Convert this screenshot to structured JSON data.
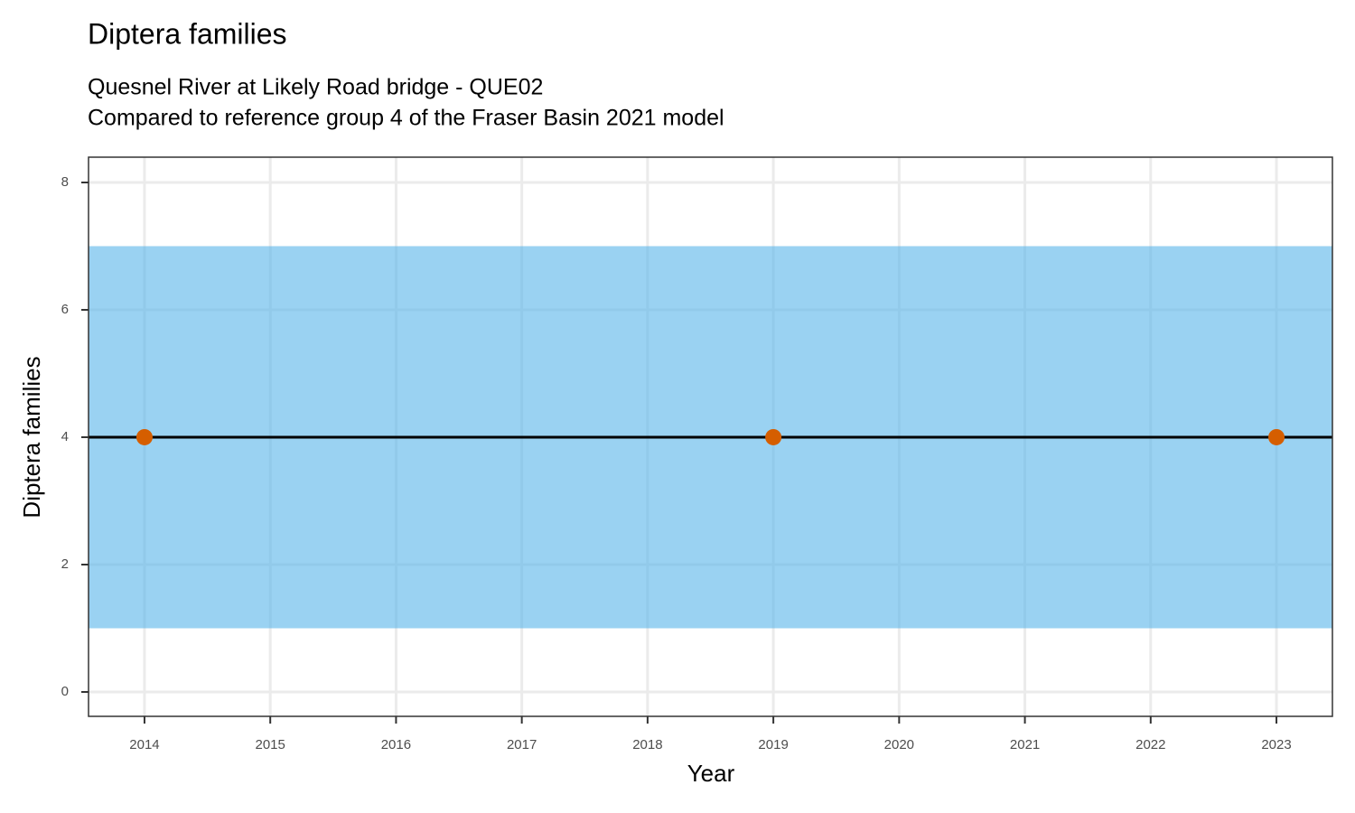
{
  "chart_data": {
    "type": "scatter",
    "title": "Diptera families",
    "subtitle": [
      "Quesnel River at Likely Road bridge - QUE02",
      "Compared to reference group 4 of the Fraser Basin 2021 model"
    ],
    "x_label": "Year",
    "y_label": "Diptera families",
    "x": [
      2014,
      2019,
      2023
    ],
    "values": [
      4,
      4,
      4
    ],
    "color": "#D55E00",
    "reference_line": 4,
    "reference_color": "#000000",
    "band": [
      1,
      7
    ],
    "band_color": "#56B4E9",
    "xlim": [
      2013.555,
      2023.445
    ],
    "xticks": [
      2014,
      2015,
      2016,
      2017,
      2018,
      2019,
      2020,
      2021,
      2022,
      2023
    ],
    "ylim": [
      -0.383,
      8.397
    ],
    "yticks": [
      0,
      2,
      4,
      6,
      8
    ],
    "grid": true
  }
}
